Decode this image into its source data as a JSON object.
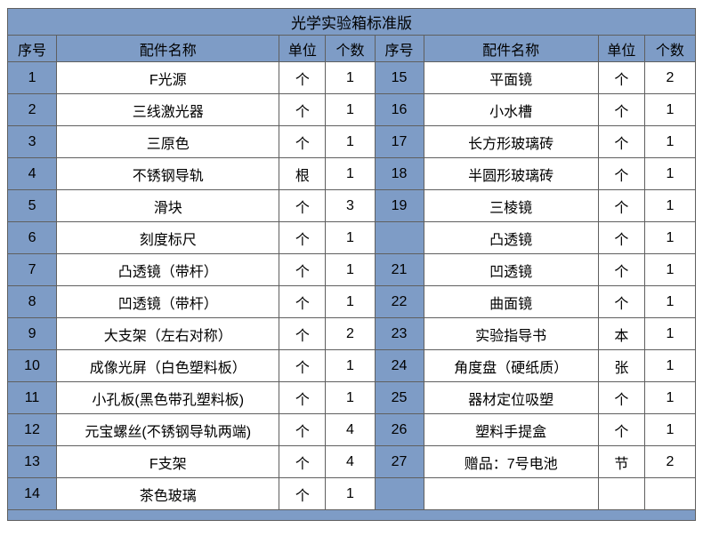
{
  "title": "光学实验箱标准版",
  "header": {
    "no": "序号",
    "name": "配件名称",
    "unit": "单位",
    "qty": "个数"
  },
  "colors": {
    "accent_blue": "#7e9cc6",
    "border_gray": "#5f5f5f",
    "text": "#000000",
    "cell_white": "#ffffff"
  },
  "left_rows": [
    {
      "no": "1",
      "name": "F光源",
      "unit": "个",
      "qty": "1"
    },
    {
      "no": "2",
      "name": "三线激光器",
      "unit": "个",
      "qty": "1"
    },
    {
      "no": "3",
      "name": "三原色",
      "unit": "个",
      "qty": "1"
    },
    {
      "no": "4",
      "name": "不锈钢导轨",
      "unit": "根",
      "qty": "1"
    },
    {
      "no": "5",
      "name": "滑块",
      "unit": "个",
      "qty": "3"
    },
    {
      "no": "6",
      "name": "刻度标尺",
      "unit": "个",
      "qty": "1"
    },
    {
      "no": "7",
      "name": "凸透镜（带杆）",
      "unit": "个",
      "qty": "1"
    },
    {
      "no": "8",
      "name": "凹透镜（带杆）",
      "unit": "个",
      "qty": "1"
    },
    {
      "no": "9",
      "name": "大支架（左右对称）",
      "unit": "个",
      "qty": "2"
    },
    {
      "no": "10",
      "name": "成像光屏（白色塑料板）",
      "unit": "个",
      "qty": "1"
    },
    {
      "no": "11",
      "name": "小孔板(黑色带孔塑料板)",
      "unit": "个",
      "qty": "1"
    },
    {
      "no": "12",
      "name": "元宝螺丝(不锈钢导轨两端)",
      "unit": "个",
      "qty": "4"
    },
    {
      "no": "13",
      "name": "F支架",
      "unit": "个",
      "qty": "4"
    },
    {
      "no": "14",
      "name": "茶色玻璃",
      "unit": "个",
      "qty": "1"
    }
  ],
  "right_rows": [
    {
      "no": "15",
      "name": "平面镜",
      "unit": "个",
      "qty": "2"
    },
    {
      "no": "16",
      "name": "小水槽",
      "unit": "个",
      "qty": "1"
    },
    {
      "no": "17",
      "name": "长方形玻璃砖",
      "unit": "个",
      "qty": "1"
    },
    {
      "no": "18",
      "name": "半圆形玻璃砖",
      "unit": "个",
      "qty": "1"
    },
    {
      "no": "19",
      "name": "三棱镜",
      "unit": "个",
      "qty": "1"
    },
    {
      "no": "",
      "name": "凸透镜",
      "unit": "个",
      "qty": "1"
    },
    {
      "no": "21",
      "name": "凹透镜",
      "unit": "个",
      "qty": "1"
    },
    {
      "no": "22",
      "name": "曲面镜",
      "unit": "个",
      "qty": "1"
    },
    {
      "no": "23",
      "name": "实验指导书",
      "unit": "本",
      "qty": "1"
    },
    {
      "no": "24",
      "name": "角度盘（硬纸质）",
      "unit": "张",
      "qty": "1"
    },
    {
      "no": "25",
      "name": "器材定位吸塑",
      "unit": "个",
      "qty": "1"
    },
    {
      "no": "26",
      "name": "塑料手提盒",
      "unit": "个",
      "qty": "1"
    },
    {
      "no": "27",
      "name": "赠品：7号电池",
      "unit": "节",
      "qty": "2"
    },
    {
      "no": "",
      "name": "",
      "unit": "",
      "qty": ""
    }
  ]
}
